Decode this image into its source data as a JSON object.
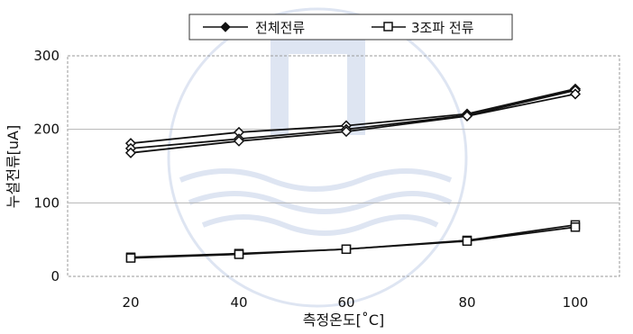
{
  "chart_data": {
    "type": "line",
    "xlabel": "측정온도[˚C]",
    "ylabel": "누설전류[uA]",
    "x": [
      20,
      40,
      60,
      80,
      100
    ],
    "xticks": [
      "20",
      "40",
      "60",
      "80",
      "100"
    ],
    "ylim": [
      0,
      300
    ],
    "yticks": [
      "0",
      "100",
      "200",
      "300"
    ],
    "grid": "horizontal",
    "legend_position": "top",
    "series": [
      {
        "name": "전체전류",
        "marker": "diamond",
        "values": [
          181,
          196,
          205,
          221,
          255
        ]
      },
      {
        "name": "",
        "marker": "diamond",
        "values": [
          174,
          187,
          200,
          219,
          253
        ]
      },
      {
        "name": "",
        "marker": "diamond",
        "values": [
          168,
          184,
          197,
          218,
          248
        ]
      },
      {
        "name": "3조파 전류",
        "marker": "square",
        "values": [
          26,
          31,
          37,
          49,
          70
        ]
      },
      {
        "name": "",
        "marker": "square",
        "values": [
          25,
          30,
          37,
          48,
          67
        ]
      }
    ]
  }
}
